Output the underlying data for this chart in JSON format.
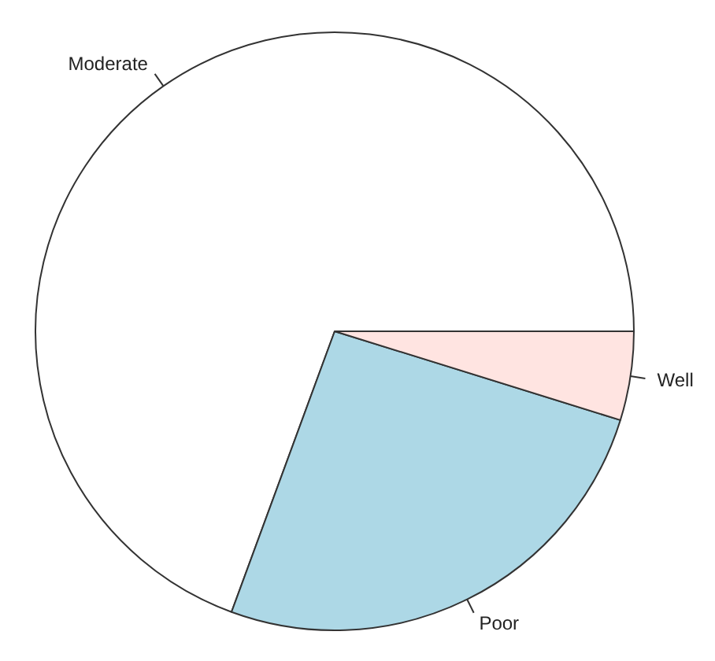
{
  "chart_data": {
    "type": "pie",
    "categories": [
      "Moderate",
      "Poor",
      "Well"
    ],
    "values": [
      69.4,
      25.8,
      4.8
    ],
    "colors": [
      "#ffffff",
      "#add8e6",
      "#ffe4e1"
    ]
  }
}
